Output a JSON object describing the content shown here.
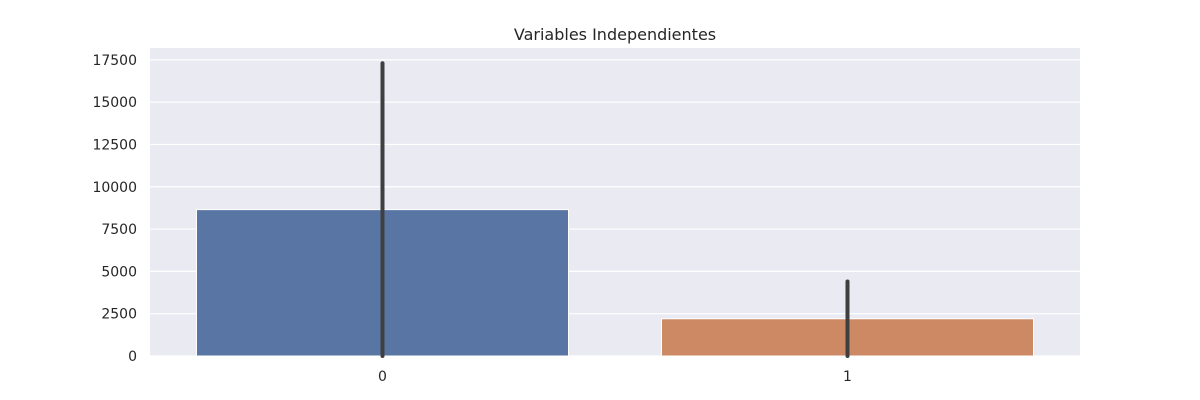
{
  "chart_data": {
    "type": "bar",
    "title": "Variables Independientes",
    "xlabel": "",
    "ylabel": "",
    "categories": [
      "0",
      "1"
    ],
    "values": [
      8650,
      2200
    ],
    "error_bars": [
      [
        0,
        17300
      ],
      [
        0,
        4400
      ]
    ],
    "ylim": [
      0,
      18200
    ],
    "yticks": [
      0,
      2500,
      5000,
      7500,
      10000,
      12500,
      15000,
      17500
    ],
    "ytick_labels": [
      "0",
      "2500",
      "5000",
      "7500",
      "10000",
      "12500",
      "15000",
      "17500"
    ],
    "grid": true,
    "legend": "none",
    "colors": {
      "background": "#eaeaf2",
      "grid": "#ffffff",
      "bars": [
        "#5975a4",
        "#cc8963"
      ],
      "error_bar": "#3f3f3f",
      "text": "#262626"
    }
  }
}
